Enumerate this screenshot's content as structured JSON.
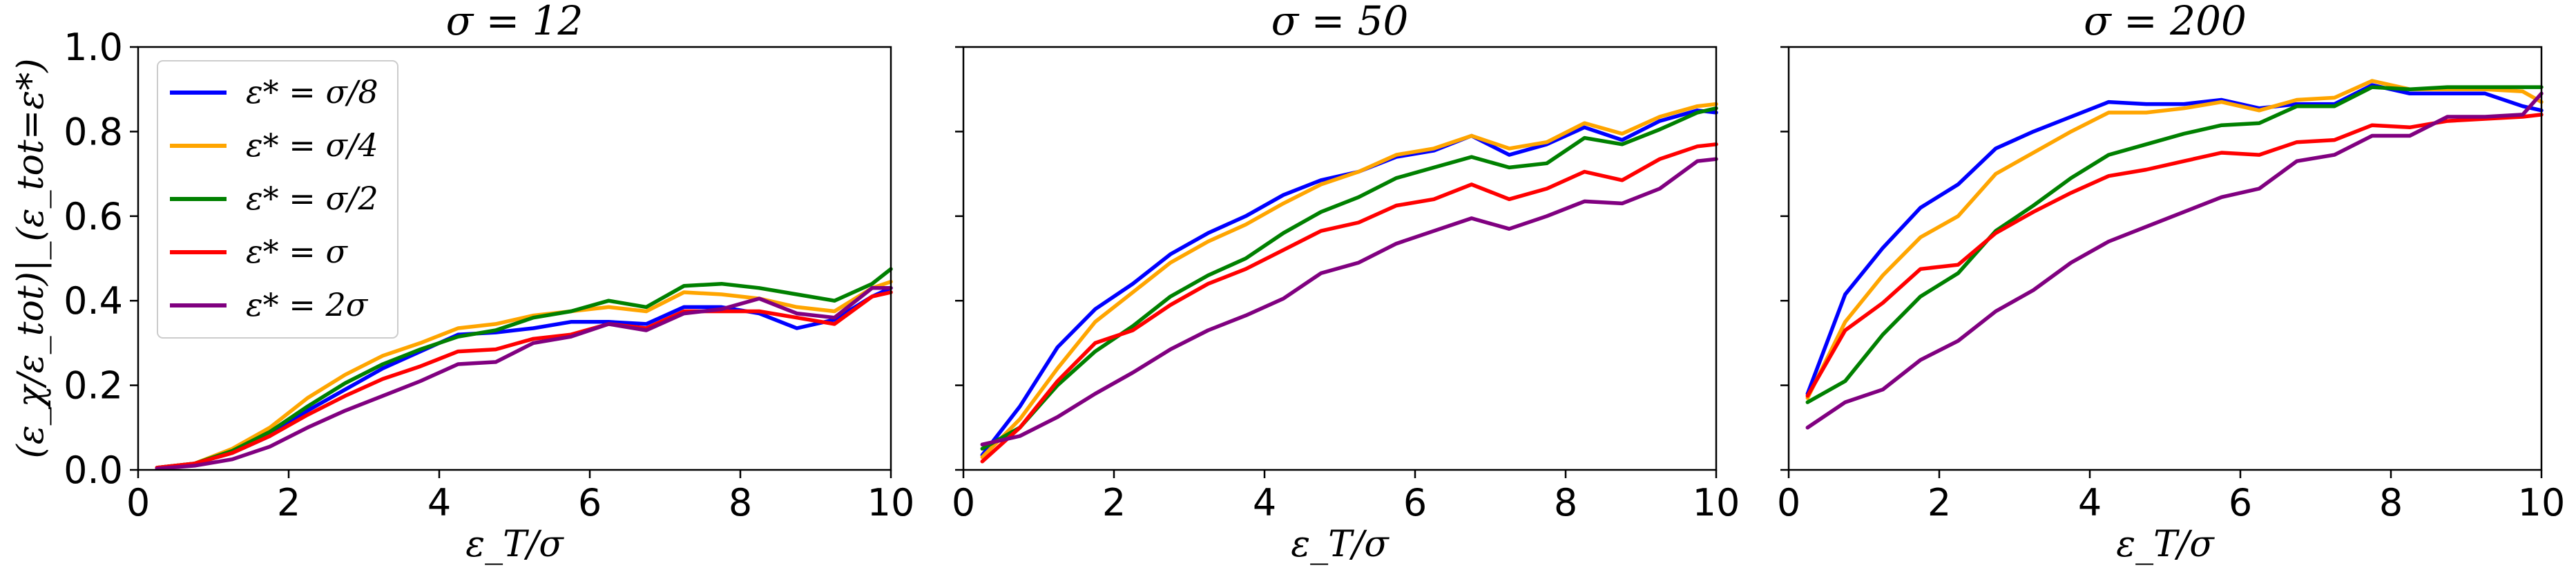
{
  "chart_data": [
    {
      "type": "line",
      "title": "σ = 12",
      "xlabel": "ε_T/σ",
      "ylabel": "(ε_χ/ε_tot)|_(ε_tot=ε*)",
      "xlim": [
        0,
        10
      ],
      "ylim": [
        0,
        1
      ],
      "xticks": [
        "0",
        "2",
        "4",
        "6",
        "8",
        "10"
      ],
      "yticks": [
        "0.0",
        "0.2",
        "0.4",
        "0.6",
        "0.8",
        "1.0"
      ],
      "show_yticklabels": true,
      "legend": "upper-left",
      "x": [
        0.25,
        0.75,
        1.25,
        1.75,
        2.25,
        2.75,
        3.25,
        3.75,
        4.25,
        4.75,
        5.25,
        5.75,
        6.25,
        6.75,
        7.25,
        7.75,
        8.25,
        8.75,
        9.25,
        9.75,
        10.0
      ],
      "series": [
        {
          "name": "ε* = σ/8",
          "color": "#0000ff",
          "values": [
            0.005,
            0.015,
            0.04,
            0.08,
            0.14,
            0.19,
            0.24,
            0.28,
            0.32,
            0.325,
            0.335,
            0.35,
            0.35,
            0.345,
            0.385,
            0.385,
            0.37,
            0.335,
            0.355,
            0.41,
            0.43
          ]
        },
        {
          "name": "ε* = σ/4",
          "color": "#ffa500",
          "values": [
            0.005,
            0.015,
            0.05,
            0.1,
            0.17,
            0.225,
            0.27,
            0.3,
            0.335,
            0.345,
            0.365,
            0.375,
            0.385,
            0.375,
            0.42,
            0.415,
            0.405,
            0.385,
            0.375,
            0.43,
            0.445
          ]
        },
        {
          "name": "ε* = σ/2",
          "color": "#008000",
          "values": [
            0.005,
            0.015,
            0.045,
            0.09,
            0.15,
            0.205,
            0.25,
            0.285,
            0.315,
            0.33,
            0.36,
            0.375,
            0.4,
            0.385,
            0.435,
            0.44,
            0.43,
            0.415,
            0.4,
            0.44,
            0.475
          ]
        },
        {
          "name": "ε* = σ",
          "color": "#ff0000",
          "values": [
            0.005,
            0.015,
            0.04,
            0.08,
            0.13,
            0.175,
            0.215,
            0.245,
            0.28,
            0.285,
            0.31,
            0.32,
            0.345,
            0.335,
            0.375,
            0.375,
            0.375,
            0.36,
            0.345,
            0.41,
            0.42
          ]
        },
        {
          "name": "ε* = 2σ",
          "color": "#800080",
          "values": [
            0.003,
            0.01,
            0.025,
            0.055,
            0.1,
            0.14,
            0.175,
            0.21,
            0.25,
            0.255,
            0.3,
            0.315,
            0.345,
            0.33,
            0.37,
            0.38,
            0.405,
            0.37,
            0.36,
            0.43,
            0.43
          ]
        }
      ]
    },
    {
      "type": "line",
      "title": "σ = 50",
      "xlabel": "ε_T/σ",
      "xlim": [
        0,
        10
      ],
      "ylim": [
        0,
        1
      ],
      "xticks": [
        "0",
        "2",
        "4",
        "6",
        "8",
        "10"
      ],
      "show_yticklabels": false,
      "x": [
        0.25,
        0.75,
        1.25,
        1.75,
        2.25,
        2.75,
        3.25,
        3.75,
        4.25,
        4.75,
        5.25,
        5.75,
        6.25,
        6.75,
        7.25,
        7.75,
        8.25,
        8.75,
        9.25,
        9.75,
        10.0
      ],
      "series": [
        {
          "name": "ε* = σ/8",
          "color": "#0000ff",
          "values": [
            0.035,
            0.15,
            0.29,
            0.38,
            0.44,
            0.51,
            0.56,
            0.6,
            0.65,
            0.685,
            0.705,
            0.74,
            0.755,
            0.79,
            0.745,
            0.77,
            0.81,
            0.78,
            0.825,
            0.85,
            0.845
          ]
        },
        {
          "name": "ε* = σ/4",
          "color": "#ffa500",
          "values": [
            0.03,
            0.12,
            0.24,
            0.35,
            0.42,
            0.49,
            0.54,
            0.58,
            0.63,
            0.675,
            0.705,
            0.745,
            0.76,
            0.79,
            0.76,
            0.775,
            0.82,
            0.795,
            0.835,
            0.86,
            0.865
          ]
        },
        {
          "name": "ε* = σ/2",
          "color": "#008000",
          "values": [
            0.05,
            0.1,
            0.2,
            0.28,
            0.34,
            0.41,
            0.46,
            0.5,
            0.56,
            0.61,
            0.645,
            0.69,
            0.715,
            0.74,
            0.715,
            0.725,
            0.785,
            0.77,
            0.805,
            0.845,
            0.855
          ]
        },
        {
          "name": "ε* = σ",
          "color": "#ff0000",
          "values": [
            0.02,
            0.1,
            0.21,
            0.3,
            0.33,
            0.39,
            0.44,
            0.475,
            0.52,
            0.565,
            0.585,
            0.625,
            0.64,
            0.675,
            0.64,
            0.665,
            0.705,
            0.685,
            0.735,
            0.765,
            0.77
          ]
        },
        {
          "name": "ε* = 2σ",
          "color": "#800080",
          "values": [
            0.06,
            0.08,
            0.125,
            0.18,
            0.23,
            0.285,
            0.33,
            0.365,
            0.405,
            0.465,
            0.49,
            0.535,
            0.565,
            0.595,
            0.57,
            0.6,
            0.635,
            0.63,
            0.665,
            0.73,
            0.735
          ]
        }
      ]
    },
    {
      "type": "line",
      "title": "σ = 200",
      "xlabel": "ε_T/σ",
      "xlim": [
        0,
        10
      ],
      "ylim": [
        0,
        1
      ],
      "xticks": [
        "0",
        "2",
        "4",
        "6",
        "8",
        "10"
      ],
      "show_yticklabels": false,
      "x": [
        0.25,
        0.75,
        1.25,
        1.75,
        2.25,
        2.75,
        3.25,
        3.75,
        4.25,
        4.75,
        5.25,
        5.75,
        6.25,
        6.75,
        7.25,
        7.75,
        8.25,
        8.75,
        9.25,
        9.75,
        10.0
      ],
      "series": [
        {
          "name": "ε* = σ/8",
          "color": "#0000ff",
          "values": [
            0.18,
            0.415,
            0.525,
            0.62,
            0.675,
            0.76,
            0.8,
            0.835,
            0.87,
            0.865,
            0.865,
            0.875,
            0.855,
            0.865,
            0.865,
            0.91,
            0.89,
            0.89,
            0.89,
            0.86,
            0.85
          ]
        },
        {
          "name": "ε* = σ/4",
          "color": "#ffa500",
          "values": [
            0.17,
            0.35,
            0.46,
            0.55,
            0.6,
            0.7,
            0.75,
            0.8,
            0.845,
            0.845,
            0.855,
            0.87,
            0.85,
            0.875,
            0.88,
            0.92,
            0.9,
            0.9,
            0.9,
            0.895,
            0.87
          ]
        },
        {
          "name": "ε* = σ/2",
          "color": "#008000",
          "values": [
            0.16,
            0.21,
            0.32,
            0.41,
            0.465,
            0.565,
            0.625,
            0.69,
            0.745,
            0.77,
            0.795,
            0.815,
            0.82,
            0.86,
            0.86,
            0.905,
            0.9,
            0.905,
            0.905,
            0.905,
            0.905
          ]
        },
        {
          "name": "ε* = σ",
          "color": "#ff0000",
          "values": [
            0.175,
            0.33,
            0.395,
            0.475,
            0.485,
            0.56,
            0.61,
            0.655,
            0.695,
            0.71,
            0.73,
            0.75,
            0.745,
            0.775,
            0.78,
            0.815,
            0.81,
            0.825,
            0.83,
            0.835,
            0.84
          ]
        },
        {
          "name": "ε* = 2σ",
          "color": "#800080",
          "values": [
            0.1,
            0.16,
            0.19,
            0.26,
            0.305,
            0.375,
            0.425,
            0.49,
            0.54,
            0.575,
            0.61,
            0.645,
            0.665,
            0.73,
            0.745,
            0.79,
            0.79,
            0.835,
            0.835,
            0.84,
            0.89
          ]
        }
      ]
    }
  ]
}
